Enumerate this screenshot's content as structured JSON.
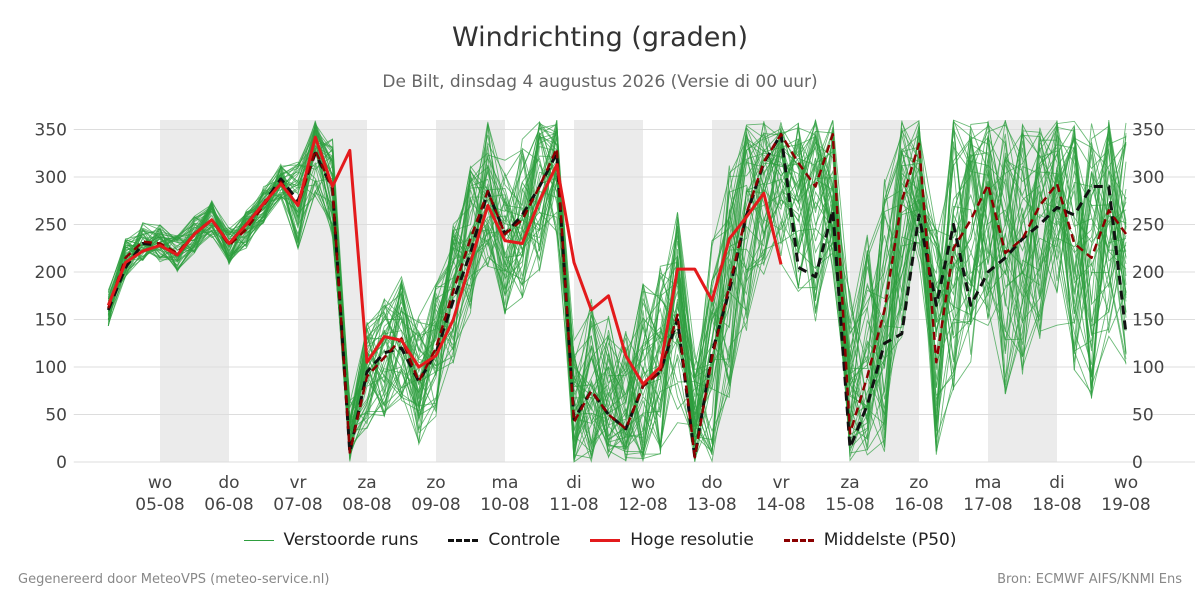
{
  "page": {
    "title": "Windrichting (graden)",
    "subtitle": "De Bilt, dinsdag  4 augustus 2026 (Versie di 00 uur)",
    "footer_left": "Gegenereerd door MeteoVPS (meteo-service.nl)",
    "footer_right": "Bron: ECMWF AIFS/KNMI Ens"
  },
  "legend": {
    "ensemble": "Verstoorde runs",
    "control": "Controle",
    "hires": "Hoge resolutie",
    "median": "Middelste (P50)"
  },
  "colors": {
    "ensemble": "#2e9e3e",
    "control": "#111111",
    "hires": "#e31a1c",
    "median": "#8b0000",
    "weekend_band": "#ebebeb",
    "grid": "#dddddd"
  },
  "chart_data": {
    "type": "line",
    "title": "Windrichting (graden)",
    "ylim": [
      0,
      360
    ],
    "yticks": [
      0,
      50,
      100,
      150,
      200,
      250,
      300,
      350
    ],
    "xlim": [
      -1.25,
      15
    ],
    "xticks": [
      {
        "day": "wo",
        "date": "05-08"
      },
      {
        "day": "do",
        "date": "06-08"
      },
      {
        "day": "vr",
        "date": "07-08"
      },
      {
        "day": "za",
        "date": "08-08"
      },
      {
        "day": "zo",
        "date": "09-08"
      },
      {
        "day": "ma",
        "date": "10-08"
      },
      {
        "day": "di",
        "date": "11-08"
      },
      {
        "day": "wo",
        "date": "12-08"
      },
      {
        "day": "do",
        "date": "13-08"
      },
      {
        "day": "vr",
        "date": "14-08"
      },
      {
        "day": "za",
        "date": "15-08"
      },
      {
        "day": "zo",
        "date": "16-08"
      },
      {
        "day": "ma",
        "date": "17-08"
      },
      {
        "day": "di",
        "date": "18-08"
      },
      {
        "day": "wo",
        "date": "19-08"
      }
    ],
    "shaded_days": [
      [
        0,
        1
      ],
      [
        2,
        3
      ],
      [
        4,
        5
      ],
      [
        6,
        7
      ],
      [
        8,
        9
      ],
      [
        10,
        11
      ],
      [
        12,
        13
      ]
    ],
    "grid": true,
    "legend_position": "bottom",
    "ensemble_count": 50,
    "series": [
      {
        "name": "Hoge resolutie",
        "x": [
          -0.75,
          -0.5,
          -0.25,
          0,
          0.25,
          0.5,
          0.75,
          1,
          1.25,
          1.5,
          1.75,
          2,
          2.25,
          2.5,
          2.75,
          3,
          3.25,
          3.5,
          3.75,
          4,
          4.25,
          4.5,
          4.75,
          5,
          5.25,
          5.5,
          5.75,
          6,
          6.25,
          6.5,
          6.75,
          7,
          7.25,
          7.5,
          7.75,
          8,
          8.25,
          8.5,
          8.75,
          9
        ],
        "y": [
          165,
          210,
          222,
          228,
          218,
          240,
          255,
          230,
          250,
          272,
          293,
          270,
          342,
          290,
          328,
          105,
          132,
          128,
          100,
          112,
          150,
          210,
          270,
          233,
          230,
          275,
          313,
          210,
          160,
          175,
          112,
          82,
          100,
          203,
          203,
          170,
          235,
          258,
          283,
          208
        ]
      },
      {
        "name": "Controle",
        "x": [
          -0.75,
          -0.5,
          -0.25,
          0,
          0.25,
          0.5,
          0.75,
          1,
          1.25,
          1.5,
          1.75,
          2,
          2.25,
          2.5,
          2.75,
          3,
          3.25,
          3.5,
          3.75,
          4,
          4.25,
          4.5,
          4.75,
          5,
          5.25,
          5.5,
          5.75,
          6,
          6.25,
          6.5,
          6.75,
          7,
          7.25,
          7.5,
          7.75,
          8,
          8.25,
          8.5,
          8.75,
          9,
          9.25,
          9.5,
          9.75,
          10,
          10.25,
          10.5,
          10.75,
          11,
          11.25,
          11.5,
          11.75,
          12,
          12.25,
          12.5,
          12.75,
          13,
          13.25,
          13.5,
          13.75,
          14
        ],
        "y": [
          160,
          205,
          230,
          228,
          218,
          240,
          255,
          230,
          250,
          272,
          298,
          275,
          325,
          288,
          10,
          95,
          115,
          120,
          85,
          115,
          170,
          220,
          285,
          240,
          260,
          290,
          325,
          45,
          75,
          50,
          35,
          80,
          95,
          150,
          5,
          115,
          180,
          260,
          315,
          345,
          205,
          195,
          265,
          15,
          60,
          125,
          135,
          260,
          165,
          250,
          165,
          200,
          215,
          235,
          250,
          268,
          260,
          290,
          290,
          135
        ]
      },
      {
        "name": "Middelste (P50)",
        "x": [
          -0.75,
          -0.5,
          -0.25,
          0,
          0.25,
          0.5,
          0.75,
          1,
          1.25,
          1.5,
          1.75,
          2,
          2.25,
          2.5,
          2.75,
          3,
          3.25,
          3.5,
          3.75,
          4,
          4.25,
          4.5,
          4.75,
          5,
          5.25,
          5.5,
          5.75,
          6,
          6.25,
          6.5,
          6.75,
          7,
          7.25,
          7.5,
          7.75,
          8,
          8.25,
          8.5,
          8.75,
          9,
          9.25,
          9.5,
          9.75,
          10,
          10.25,
          10.5,
          10.75,
          11,
          11.25,
          11.5,
          11.75,
          12,
          12.25,
          12.5,
          12.75,
          13,
          13.25,
          13.5,
          13.75,
          14
        ],
        "y": [
          162,
          215,
          232,
          230,
          220,
          240,
          255,
          228,
          245,
          270,
          295,
          270,
          328,
          288,
          10,
          90,
          110,
          130,
          85,
          120,
          180,
          235,
          285,
          240,
          255,
          290,
          330,
          42,
          75,
          50,
          35,
          80,
          95,
          155,
          5,
          110,
          185,
          262,
          316,
          345,
          315,
          290,
          345,
          30,
          90,
          160,
          275,
          335,
          105,
          225,
          255,
          292,
          220,
          235,
          270,
          293,
          230,
          215,
          265,
          240
        ]
      }
    ]
  }
}
